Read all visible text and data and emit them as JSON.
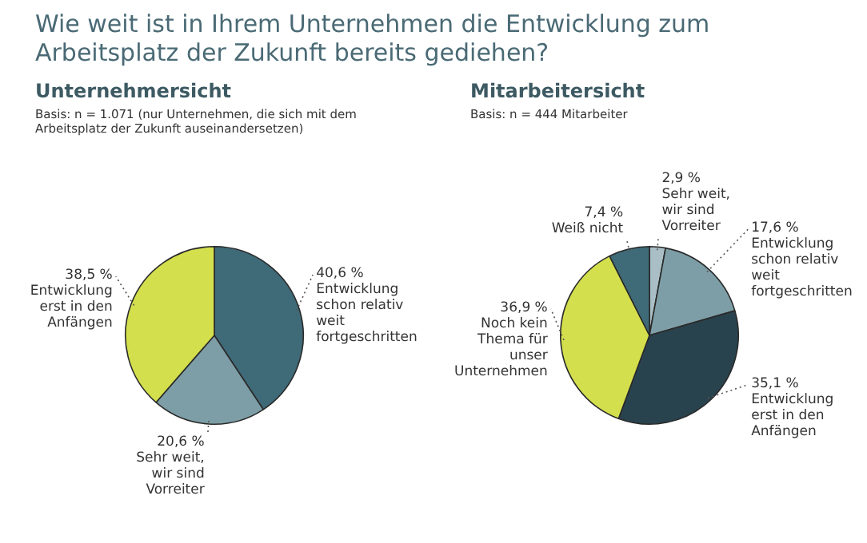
{
  "chart_data": [
    {
      "type": "pie",
      "title": "Unternehmersicht",
      "subtitle": "Basis: n = 1.071 (nur Unternehmen, die sich mit dem Arbeitsplatz der Zukunft auseinandersetzen)",
      "annotations": [
        "Wie weit ist in Ihrem Unternehmen die Entwicklung zum Arbeitsplatz der Zukunft bereits gediehen?"
      ],
      "categories": [
        "Entwicklung schon relativ weit fortgeschritten",
        "Sehr weit, wir sind Vorreiter",
        "Entwicklung erst in den Anfängen"
      ],
      "values": [
        40.6,
        20.6,
        38.5
      ],
      "value_labels": [
        "40,6 %",
        "20,6 %",
        "38,5 %"
      ],
      "colors": [
        "#3f6a78",
        "#7d9ea6",
        "#d3df4c"
      ]
    },
    {
      "type": "pie",
      "title": "Mitarbeitersicht",
      "subtitle": "Basis: n = 444 Mitarbeiter",
      "categories": [
        "Sehr weit, wir sind Vorreiter",
        "Entwicklung schon relativ weit fortgeschritten",
        "Entwicklung erst in den Anfängen",
        "Noch kein Thema für unser Unternehmen",
        "Weiß nicht"
      ],
      "values": [
        2.9,
        17.6,
        35.1,
        36.9,
        7.4
      ],
      "value_labels": [
        "2,9 %",
        "17,6 %",
        "35,1 %",
        "36,9 %",
        "7,4 %"
      ],
      "colors": [
        "#a9bfc5",
        "#7d9ea6",
        "#29434e",
        "#d3df4c",
        "#3f6a78"
      ]
    }
  ]
}
